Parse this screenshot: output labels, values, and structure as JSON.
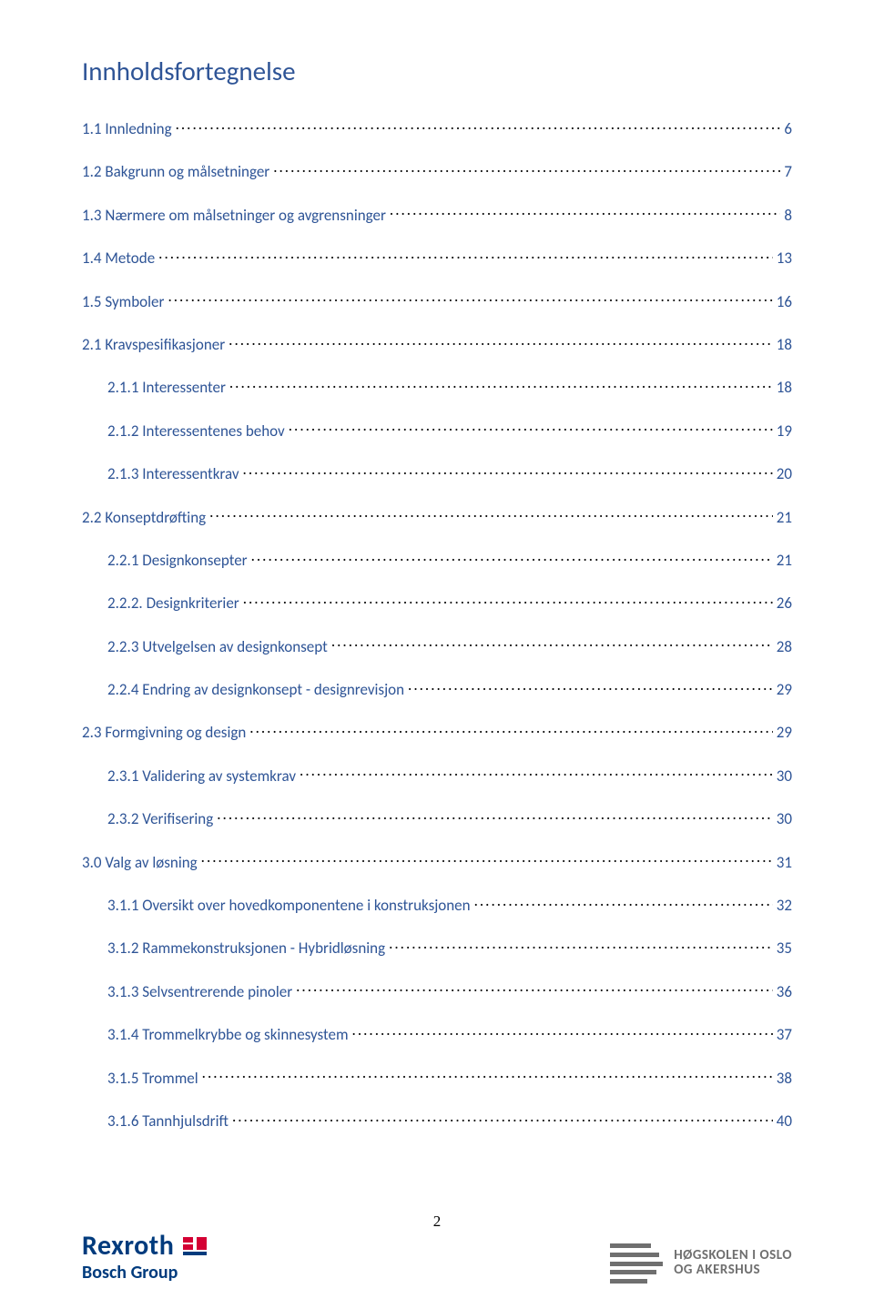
{
  "title": {
    "text": "Innholdsfortegnelse",
    "color": "#2e5496"
  },
  "toc_text_color": "#2e5496",
  "toc": [
    {
      "level": 0,
      "label": "1.1 Innledning",
      "page": "6"
    },
    {
      "level": 0,
      "label": "1.2 Bakgrunn og målsetninger",
      "page": "7"
    },
    {
      "level": 0,
      "label": "1.3 Nærmere om målsetninger og avgrensninger",
      "page": "8"
    },
    {
      "level": 0,
      "label": "1.4 Metode",
      "page": "13"
    },
    {
      "level": 0,
      "label": "1.5 Symboler",
      "page": "16"
    },
    {
      "level": 0,
      "label": "2.1 Kravspesifikasjoner",
      "page": "18"
    },
    {
      "level": 1,
      "label": "2.1.1 Interessenter",
      "page": "18"
    },
    {
      "level": 1,
      "label": "2.1.2 Interessentenes behov",
      "page": "19"
    },
    {
      "level": 1,
      "label": "2.1.3 Interessentkrav",
      "page": "20"
    },
    {
      "level": 0,
      "label": "2.2 Konseptdrøfting",
      "page": "21"
    },
    {
      "level": 1,
      "label": "2.2.1 Designkonsepter",
      "page": "21"
    },
    {
      "level": 1,
      "label": "2.2.2. Designkriterier",
      "page": "26"
    },
    {
      "level": 1,
      "label": "2.2.3 Utvelgelsen av designkonsept",
      "page": "28"
    },
    {
      "level": 1,
      "label": "2.2.4 Endring av designkonsept - designrevisjon",
      "page": "29"
    },
    {
      "level": 0,
      "label": "2.3 Formgivning og design",
      "page": "29"
    },
    {
      "level": 1,
      "label": "2.3.1 Validering av systemkrav",
      "page": "30"
    },
    {
      "level": 1,
      "label": "2.3.2 Verifisering",
      "page": "30"
    },
    {
      "level": 0,
      "label": "3.0 Valg av løsning",
      "page": "31"
    },
    {
      "level": 1,
      "label": "3.1.1 Oversikt over hovedkomponentene i konstruksjonen",
      "page": "32"
    },
    {
      "level": 1,
      "label": "3.1.2 Rammekonstruksjonen - Hybridløsning",
      "page": "35"
    },
    {
      "level": 1,
      "label": "3.1.3 Selvsentrerende pinoler",
      "page": "36"
    },
    {
      "level": 1,
      "label": "3.1.4 Trommelkrybbe og skinnesystem",
      "page": "37"
    },
    {
      "level": 1,
      "label": "3.1.5 Trommel",
      "page": "38"
    },
    {
      "level": 1,
      "label": "3.1.6 Tannhjulsdrift",
      "page": "40"
    }
  ],
  "footer": {
    "page_number": "2",
    "rexroth": {
      "name": "Rexroth",
      "sub": "Bosch Group",
      "color": "#003b7d",
      "accent": "#d40033"
    },
    "hioa": {
      "line1": "HØGSKOLEN I OSLO",
      "line2": "OG AKERSHUS",
      "color": "#6f6f6f"
    }
  }
}
